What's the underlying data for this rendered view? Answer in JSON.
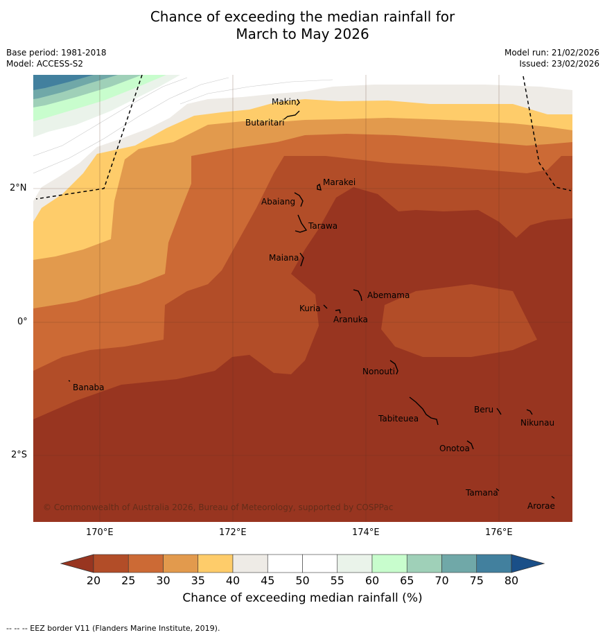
{
  "title_line1": "Chance of exceeding the median rainfall for",
  "title_line2": "March to May 2026",
  "base_period": "Base period: 1981-2018",
  "model": "Model: ACCESS-S2",
  "model_run": "Model run: 21/02/2026",
  "issued": "Issued: 23/02/2026",
  "copyright": "© Commonwealth of Australia 2026, Bureau of Meteorology, supported by COSPPac",
  "lat_labels": [
    "2°N",
    "0°",
    "2°S"
  ],
  "lon_labels": [
    "170°E",
    "172°E",
    "174°E",
    "176°E"
  ],
  "places": [
    "Makin",
    "Butaritari",
    "Marakei",
    "Abaiang",
    "Tarawa",
    "Maiana",
    "Abemama",
    "Kuria",
    "Aranuka",
    "Nonouti",
    "Banaba",
    "Tabiteuea",
    "Beru",
    "Nikunau",
    "Onotoa",
    "Tamana",
    "Arorae"
  ],
  "colorbar": {
    "label": "Chance of exceeding median rainfall (%)",
    "ticks": [
      "20",
      "25",
      "30",
      "35",
      "40",
      "45",
      "50",
      "55",
      "60",
      "65",
      "70",
      "75",
      "80"
    ],
    "colors": [
      "#983520",
      "#b24d28",
      "#cc6a35",
      "#e29a4d",
      "#fecc6a",
      "#eeebe6",
      "#ffffff",
      "#ffffff",
      "#eaf3ea",
      "#c8fdcd",
      "#9fd0b8",
      "#70a8a8",
      "#42809e",
      "#1a4f88"
    ]
  },
  "footnote": "--  --  -- EEZ border V11 (Flanders Marine Institute, 2019)."
}
